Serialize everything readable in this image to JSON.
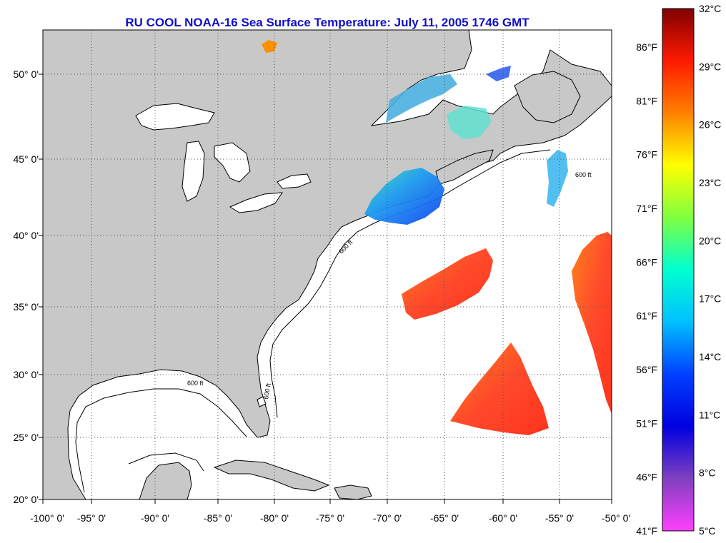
{
  "title": "RU COOL  NOAA-16  Sea Surface Temperature:  July 11, 2005 1746 GMT",
  "map": {
    "lon_labels": [
      "-100° 0'",
      "-95° 0'",
      "-90° 0'",
      "-85° 0'",
      "-80° 0'",
      "-75° 0'",
      "-70° 0'",
      "-65° 0'",
      "-60° 0'",
      "-55° 0'",
      "-50° 0'"
    ],
    "lat_labels": [
      "50° 0'",
      "45° 0'",
      "40° 0'",
      "35° 0'",
      "30° 0'",
      "25° 0'",
      "20° 0'"
    ],
    "isobath_label": "600 ft",
    "colors": {
      "land": "#c8c8c8",
      "ocean": "#ffffff",
      "coastline": "#000000",
      "grid": "#555555"
    }
  },
  "colorbar": {
    "fahrenheit_labels": [
      "86°F",
      "81°F",
      "76°F",
      "71°F",
      "66°F",
      "61°F",
      "56°F",
      "51°F",
      "46°F",
      "41°F"
    ],
    "celsius_labels": [
      "32°C",
      "29°C",
      "26°C",
      "23°C",
      "20°C",
      "17°C",
      "14°C",
      "11°C",
      "8°C",
      "5°C"
    ],
    "min_c": 5,
    "max_c": 32,
    "gradient_stops": [
      "#800000",
      "#ff1a00",
      "#ff8000",
      "#ffff00",
      "#80ff40",
      "#00ffd0",
      "#00c0ff",
      "#0040ff",
      "#0000e0",
      "#8040c0",
      "#ff40ff"
    ]
  }
}
